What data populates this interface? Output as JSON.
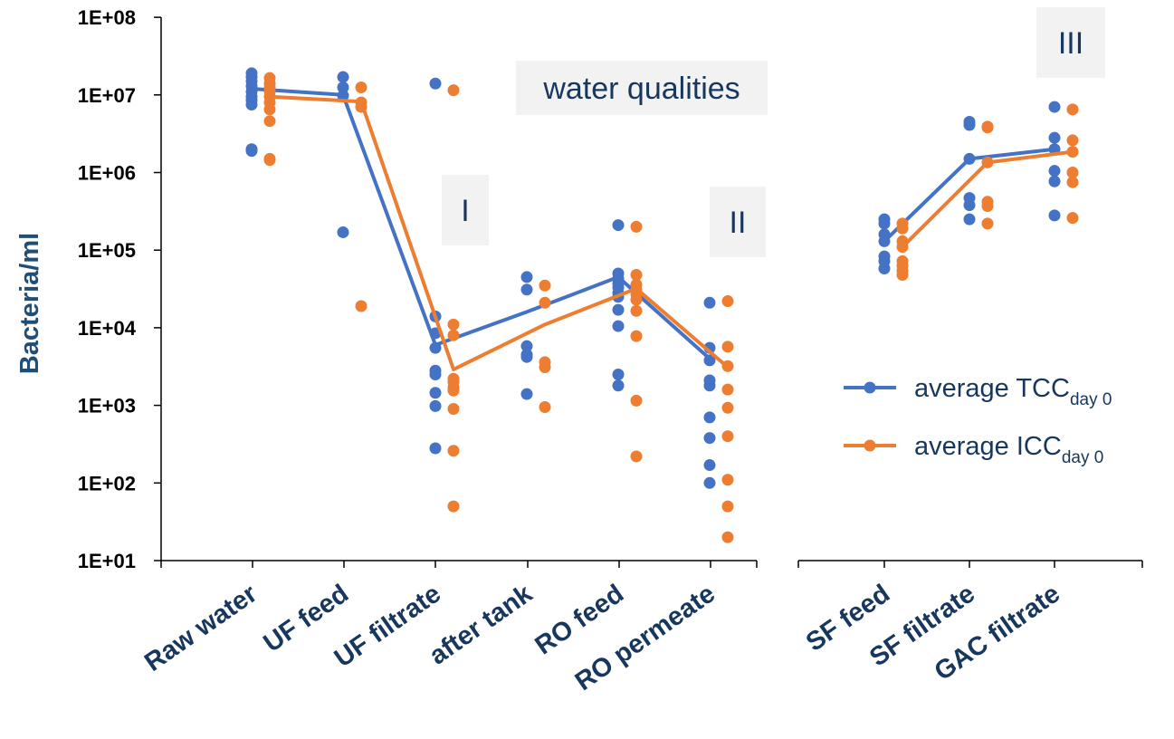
{
  "chart_data": [
    {
      "type": "scatter",
      "panel": "left",
      "ylabel": "Bacteria/ml",
      "yscale": "log",
      "ylim": [
        10,
        100000000
      ],
      "yticks": [
        "1E+01",
        "1E+02",
        "1E+03",
        "1E+04",
        "1E+05",
        "1E+06",
        "1E+07",
        "1E+08"
      ],
      "categories": [
        "Raw water",
        "UF feed",
        "UF filtrate",
        "after tank",
        "RO feed",
        "RO permeate"
      ],
      "annotations": [
        "water qualities",
        "I",
        "II"
      ],
      "series": [
        {
          "legend_label": "average TCC",
          "legend_subscript": "day 0",
          "color": "#4472c4",
          "points": [
            [
              19000000,
              17000000,
              15000000,
              13000000,
              11000000,
              9500000,
              8500000,
              7500000,
              2000000,
              1900000
            ],
            [
              17000000,
              12500000,
              9800000,
              170000
            ],
            [
              14000000,
              14000,
              8500,
              5500,
              2800,
              2500,
              1450,
              980,
              280
            ],
            [
              45000,
              31000,
              5800,
              4500,
              4200,
              1400
            ],
            [
              210000,
              50000,
              43000,
              37000,
              33000,
              28000,
              25000,
              17000,
              10500,
              2500,
              1800
            ],
            [
              21000,
              5500,
              3800,
              2100,
              1800,
              700,
              380,
              170,
              100
            ]
          ],
          "averages": [
            12000000,
            10000000,
            6000,
            16000,
            45000,
            4000
          ]
        },
        {
          "legend_label": "average ICC",
          "legend_subscript": "day 0",
          "color": "#ed7d31",
          "points": [
            [
              16500000,
              14000000,
              12500000,
              11000000,
              9500000,
              8000000,
              6500000,
              4600000,
              1500000,
              1450000
            ],
            [
              12500000,
              8000000,
              7000000,
              19000
            ],
            [
              11500000,
              11000,
              8000,
              2200,
              2000,
              1700,
              1550,
              900,
              260,
              50
            ],
            [
              35000,
              21000,
              3600,
              3100,
              950
            ],
            [
              200000,
              48000,
              36000,
              31000,
              27000,
              23000,
              16500,
              7800,
              1150,
              220
            ],
            [
              22000,
              5700,
              3200,
              1600,
              930,
              400,
              110,
              50,
              20
            ]
          ],
          "averages": [
            9500000,
            8200000,
            2900,
            11000,
            32000,
            3100
          ]
        }
      ]
    },
    {
      "type": "scatter",
      "panel": "right",
      "yscale": "log",
      "categories": [
        "SF feed",
        "SF filtrate",
        "GAC filtrate"
      ],
      "annotations": [
        "III"
      ],
      "series": [
        {
          "legend_label": "average TCC",
          "legend_subscript": "day 0",
          "color": "#4472c4",
          "points": [
            [
              250000,
              220000,
              160000,
              130000,
              83000,
              72000,
              58000
            ],
            [
              4500000,
              4100000,
              1500000,
              470000,
              380000,
              250000
            ],
            [
              7000000,
              2800000,
              2000000,
              1050000,
              770000,
              280000
            ]
          ],
          "averages": [
            130000,
            1500000,
            2000000
          ]
        },
        {
          "legend_label": "average ICC",
          "legend_subscript": "day 0",
          "color": "#ed7d31",
          "points": [
            [
              220000,
              190000,
              130000,
              110000,
              72000,
              63000,
              54000,
              48000
            ],
            [
              3900000,
              3800000,
              1350000,
              420000,
              370000,
              220000
            ],
            [
              6500000,
              2600000,
              1850000,
              1000000,
              750000,
              260000
            ]
          ],
          "averages": [
            110000,
            1350000,
            1850000
          ]
        }
      ]
    }
  ]
}
